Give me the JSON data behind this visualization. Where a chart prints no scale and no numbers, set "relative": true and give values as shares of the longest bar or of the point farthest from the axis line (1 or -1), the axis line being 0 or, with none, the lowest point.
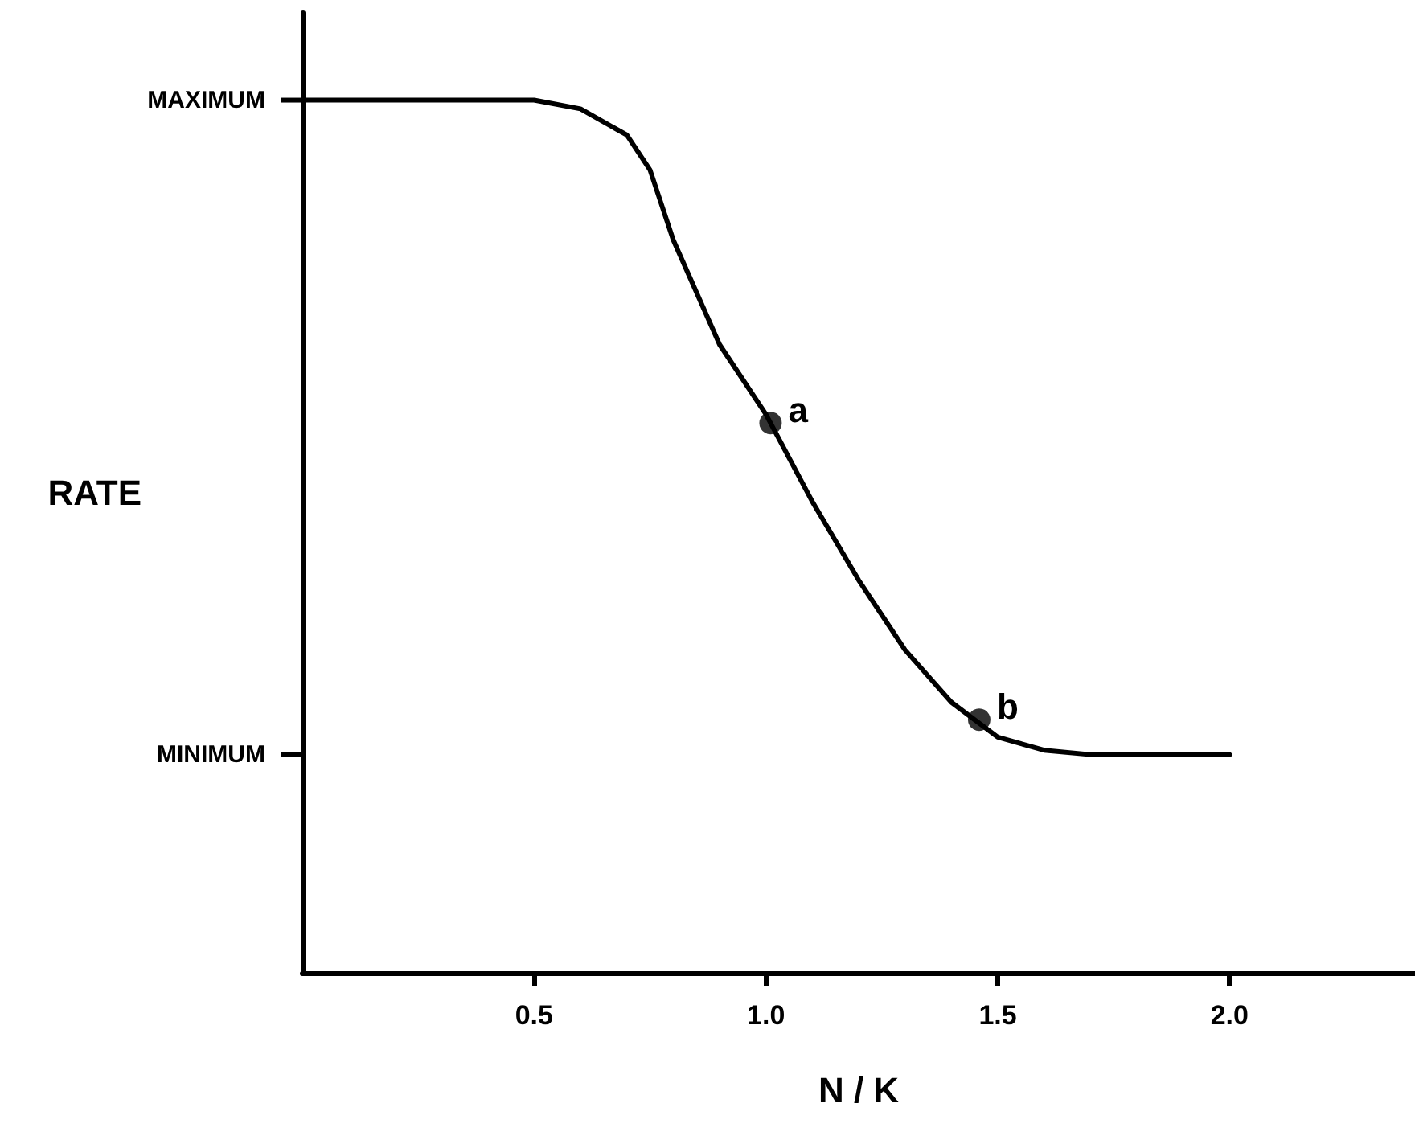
{
  "chart_data": {
    "type": "line",
    "relative": true,
    "xlabel": "N / K",
    "ylabel": "RATE",
    "xlim": [
      0,
      2.4
    ],
    "xticks": [
      0.5,
      {
        "value": 1,
        "label": "1.0"
      },
      1.5,
      {
        "value": 2,
        "label": "2.0"
      }
    ],
    "grid": false,
    "line_style": "solid",
    "series": [
      {
        "color": "#000000",
        "marker": "none",
        "x": [
          0,
          0.5,
          0.6,
          0.7,
          0.75,
          0.8,
          0.9,
          1.0,
          1.1,
          1.2,
          1.3,
          1.4,
          1.5,
          1.6,
          1.7,
          2.0
        ],
        "values": [
          1,
          1,
          0.99,
          0.96,
          0.92,
          0.84,
          0.72,
          0.64,
          0.54,
          0.45,
          0.37,
          0.31,
          0.27,
          0.255,
          0.25,
          0.25
        ]
      },
      {
        "type": "scatter",
        "color": "#000000",
        "marker": "circle",
        "x": [
          1.01,
          1.46
        ],
        "values": [
          0.63,
          0.29
        ]
      }
    ],
    "annotations": [
      "MAXIMUM",
      "MINIMUM",
      {
        "text": "a",
        "x": 1.01,
        "y": 0.63
      },
      {
        "text": "b",
        "x": 1.46,
        "y": 0.29
      }
    ]
  }
}
